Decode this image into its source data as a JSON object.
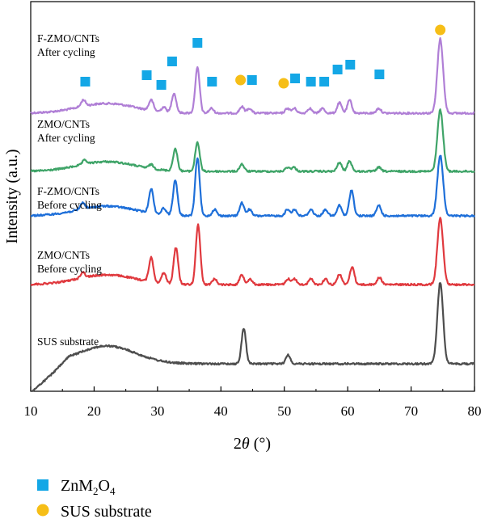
{
  "chart_data": {
    "type": "line",
    "title": "",
    "xlabel": "2θ (°)",
    "ylabel": "Intensity (a.u.)",
    "xlim": [
      10,
      80
    ],
    "x_ticks": [
      10,
      20,
      30,
      40,
      50,
      60,
      70,
      80
    ],
    "y_ticks_shown": false,
    "grid": false,
    "series": [
      {
        "name": "F-ZMO/CNTs After cycling",
        "label_lines": [
          "F-ZMO/CNTs",
          "After cycling"
        ],
        "color": "#b07fd6",
        "peaks_2theta": [
          18.3,
          29.0,
          31.0,
          32.6,
          36.3,
          38.5,
          43.3,
          44.5,
          50.5,
          51.6,
          54.0,
          56.0,
          58.7,
          60.3,
          64.9,
          74.6
        ]
      },
      {
        "name": "ZMO/CNTs After cycling",
        "label_lines": [
          "ZMO/CNTs",
          "After cycling"
        ],
        "color": "#3fa468",
        "peaks_2theta": [
          18.5,
          29.0,
          32.8,
          36.3,
          43.3,
          50.5,
          51.5,
          58.7,
          60.3,
          64.9,
          74.6
        ]
      },
      {
        "name": "F-ZMO/CNTs Before cycling",
        "label_lines": [
          "F-ZMO/CNTs",
          "Before cycling"
        ],
        "color": "#1e6fd9",
        "peaks_2theta": [
          18.2,
          29.0,
          31.0,
          32.8,
          36.3,
          39.0,
          43.3,
          44.5,
          50.5,
          51.6,
          54.2,
          56.5,
          58.7,
          60.6,
          64.9,
          74.6
        ]
      },
      {
        "name": "ZMO/CNTs Before cycling",
        "label_lines": [
          "ZMO/CNTs",
          "Before cycling"
        ],
        "color": "#e0393e",
        "peaks_2theta": [
          18.2,
          29.0,
          31.0,
          32.9,
          36.4,
          39.0,
          43.3,
          44.6,
          50.6,
          51.6,
          54.2,
          56.5,
          58.7,
          60.7,
          65.0,
          74.6
        ]
      },
      {
        "name": "SUS substrate",
        "label_lines": [
          "SUS substrate"
        ],
        "color": "#4d4d4d",
        "peaks_2theta": [
          43.6,
          50.6,
          74.6
        ]
      }
    ],
    "markers": {
      "ZnM2O4": {
        "shape": "square",
        "color": "#14a7e6",
        "positions_2theta": [
          18.6,
          28.3,
          30.6,
          32.3,
          36.3,
          38.6,
          44.9,
          51.7,
          54.2,
          56.3,
          58.4,
          60.4,
          65.0
        ]
      },
      "SUS substrate": {
        "shape": "circle",
        "color": "#f6be17",
        "positions_2theta": [
          43.1,
          49.9,
          74.6
        ]
      }
    },
    "legend": {
      "placement": "bottom-left",
      "entries": [
        {
          "label": "ZnM",
          "sub1": "2",
          "mid": "O",
          "sub2": "4",
          "shape": "square",
          "color": "#14a7e6"
        },
        {
          "label": "SUS substrate",
          "shape": "circle",
          "color": "#f6be17"
        }
      ]
    }
  }
}
